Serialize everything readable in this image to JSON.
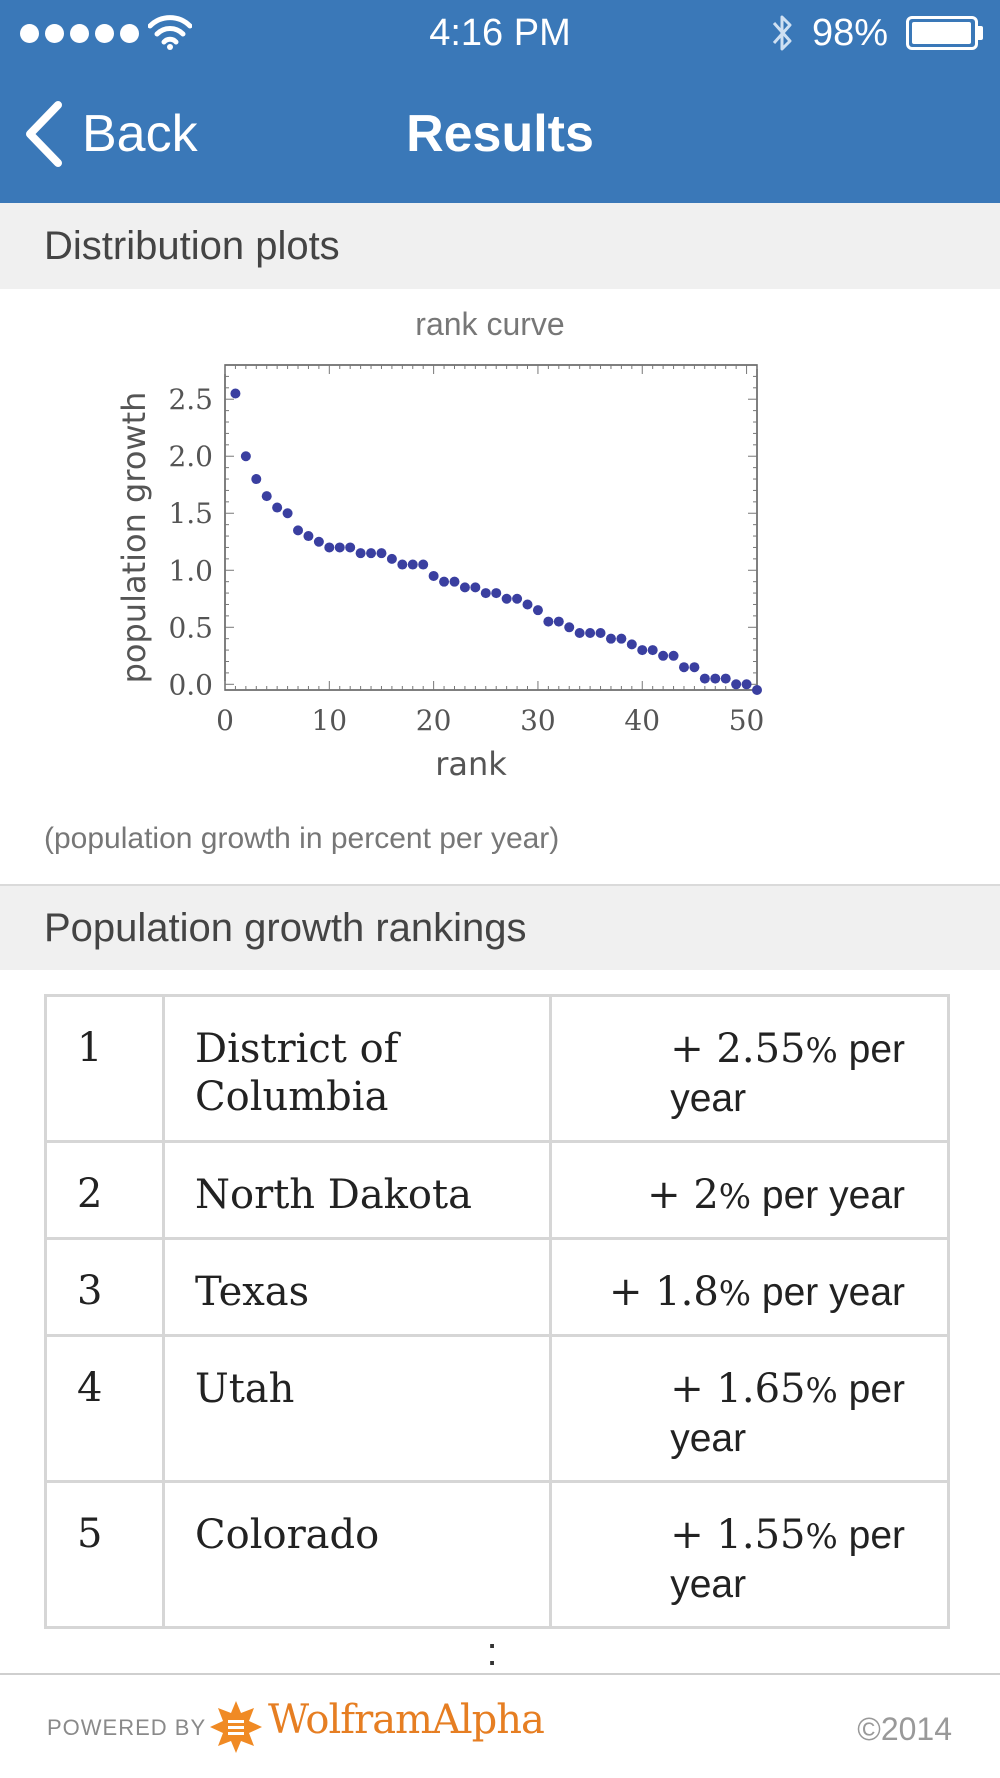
{
  "status_bar": {
    "time": "4:16 PM",
    "battery": "98%",
    "battery_level": 0.98
  },
  "nav": {
    "back_label": "Back",
    "title": "Results"
  },
  "distribution": {
    "header": "Distribution plots",
    "plot_title": "rank curve",
    "caption": "(population growth in percent per year)"
  },
  "chart_data": {
    "type": "scatter",
    "title": "rank curve",
    "xlabel": "rank",
    "ylabel": "population growth",
    "xlim": [
      0,
      51
    ],
    "ylim": [
      -0.05,
      2.8
    ],
    "xticks": [
      0,
      10,
      20,
      30,
      40,
      50
    ],
    "yticks": [
      0.0,
      0.5,
      1.0,
      1.5,
      2.0,
      2.5
    ],
    "ytick_labels": [
      "0.0",
      "0.5",
      "1.0",
      "1.5",
      "2.0",
      "2.5"
    ],
    "grid": false,
    "color": "#3a3fa0",
    "x": [
      1,
      2,
      3,
      4,
      5,
      6,
      7,
      8,
      9,
      10,
      11,
      12,
      13,
      14,
      15,
      16,
      17,
      18,
      19,
      20,
      21,
      22,
      23,
      24,
      25,
      26,
      27,
      28,
      29,
      30,
      31,
      32,
      33,
      34,
      35,
      36,
      37,
      38,
      39,
      40,
      41,
      42,
      43,
      44,
      45,
      46,
      47,
      48,
      49,
      50,
      51
    ],
    "y": [
      2.55,
      2.0,
      1.8,
      1.65,
      1.55,
      1.5,
      1.35,
      1.3,
      1.25,
      1.2,
      1.2,
      1.2,
      1.15,
      1.15,
      1.15,
      1.1,
      1.05,
      1.05,
      1.05,
      0.95,
      0.9,
      0.9,
      0.85,
      0.85,
      0.8,
      0.8,
      0.75,
      0.75,
      0.7,
      0.65,
      0.55,
      0.55,
      0.5,
      0.45,
      0.45,
      0.45,
      0.4,
      0.4,
      0.35,
      0.3,
      0.3,
      0.25,
      0.25,
      0.15,
      0.15,
      0.05,
      0.05,
      0.05,
      0.0,
      0.0,
      -0.05
    ]
  },
  "rankings": {
    "header": "Population growth rankings",
    "rows": [
      {
        "rank": "1",
        "name_line1": "District of",
        "name_line2": "Columbia",
        "value": "+ 2.55",
        "pct": "%",
        "unit": " per",
        "unit2": "year"
      },
      {
        "rank": "2",
        "name_line1": "North Dakota",
        "name_line2": "",
        "value": "+ 2",
        "pct": "%",
        "unit": " per year",
        "unit2": ""
      },
      {
        "rank": "3",
        "name_line1": "Texas",
        "name_line2": "",
        "value": "+ 1.8",
        "pct": "%",
        "unit": " per year",
        "unit2": ""
      },
      {
        "rank": "4",
        "name_line1": "Utah",
        "name_line2": "",
        "value": "+ 1.65",
        "pct": "%",
        "unit": " per",
        "unit2": "year"
      },
      {
        "rank": "5",
        "name_line1": "Colorado",
        "name_line2": "",
        "value": "+ 1.55",
        "pct": "%",
        "unit": " per",
        "unit2": "year"
      }
    ],
    "more_indicator": ":"
  },
  "footer": {
    "powered_by": "POWERED BY",
    "brand": "WolframAlpha",
    "copyright": "©2014",
    "brand_color": "#e67e22"
  },
  "colors": {
    "nav_bg": "#3a78b8",
    "section_bg": "#f0f0f0"
  }
}
